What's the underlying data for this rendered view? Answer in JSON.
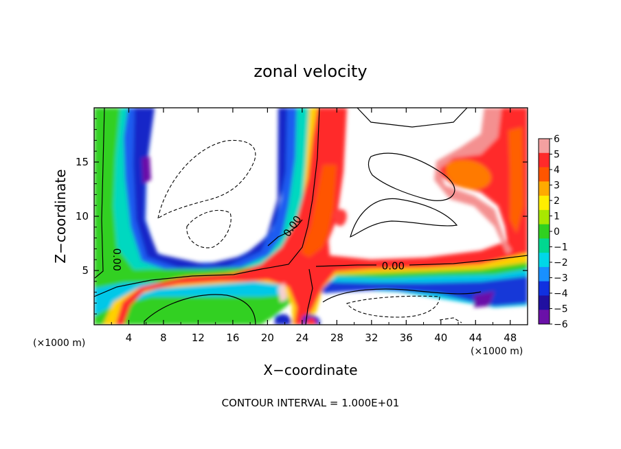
{
  "chart_data": {
    "type": "heatmap",
    "title": "zonal velocity",
    "xlabel": "X−coordinate",
    "ylabel": "Z−coordinate",
    "x_unit_left": "(×1000 m)",
    "x_unit_right": "(×1000 m)",
    "xlim": [
      0,
      50
    ],
    "ylim": [
      0,
      20
    ],
    "x_ticks": [
      4,
      8,
      12,
      16,
      20,
      24,
      28,
      32,
      36,
      40,
      44,
      48
    ],
    "y_ticks": [
      5,
      10,
      15
    ],
    "colorbar": {
      "ticks": [
        "6",
        "5",
        "4",
        "3",
        "2",
        "1",
        "0",
        "−1",
        "−2",
        "−3",
        "−4",
        "−5",
        "−6"
      ],
      "range": [
        -6,
        6
      ],
      "colors": [
        "#f4a0a0",
        "#ff2a2a",
        "#ff5500",
        "#ffaa00",
        "#ffee00",
        "#a8e800",
        "#30d020",
        "#00d890",
        "#00d8e8",
        "#1890ff",
        "#1030e0",
        "#2010a0",
        "#6a10a8"
      ]
    },
    "contour_labels": [
      {
        "text": "0.00",
        "x": 2.2,
        "y": 6.0
      },
      {
        "text": "0.00",
        "x": 23.2,
        "y": 8.9
      },
      {
        "text": "0.00",
        "x": 34.5,
        "y": 5.1
      }
    ],
    "contour_interval_text": "CONTOUR INTERVAL = 1.000E+01",
    "grid": false,
    "legend": "colorbar-right"
  },
  "text": {
    "title": "zonal velocity",
    "xlabel": "X−coordinate",
    "ylabel": "Z−coordinate",
    "x_unit_left": "(×1000 m)",
    "x_unit_right": "(×1000 m)",
    "note": "CONTOUR INTERVAL = 1.000E+01"
  }
}
